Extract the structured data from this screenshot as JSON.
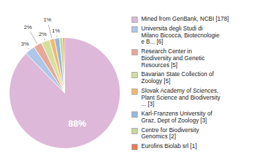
{
  "chart_data": {
    "type": "pie",
    "categories": [
      "Mined from GenBank, NCBI [178]",
      "Universita degli Studi di\nMilano Bicocca, Biotecnologie\ne B... [6]",
      "Research Center in\nBiodiversity and Genetic\nResources [5]",
      "Bavarian State Collection of\nZoology [5]",
      "Slovak Academy of Sciences,\nPlant Science and Biodiversity\n... [3]",
      "Karl-Franzens University of\nGraz, Dept of Zoology [3]",
      "Centre for Biodiversity\nGenomics [2]",
      "Eurofins Biolab srl [1]"
    ],
    "values": [
      87.68,
      2.96,
      2.46,
      2.46,
      1.48,
      1.48,
      0.99,
      0.49
    ],
    "value_labels": [
      "88%",
      "3%",
      "2%",
      "2%",
      "1%",
      "1%",
      null,
      null
    ],
    "colors": [
      "#ddb8d8",
      "#aec6e8",
      "#e8a898",
      "#d4e0a0",
      "#f4b870",
      "#98b8d8",
      "#c8d898",
      "#e87858"
    ],
    "data_labels": true,
    "legend": "right"
  }
}
